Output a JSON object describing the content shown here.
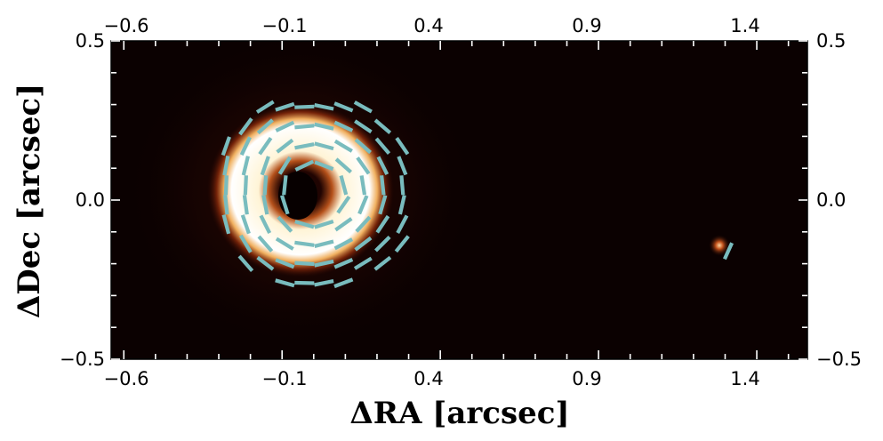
{
  "chart_data": {
    "type": "heatmap",
    "title": "",
    "xlabel": "ΔRA [arcsec]",
    "ylabel": "ΔDec [arcsec]",
    "xlim": [
      -0.64,
      1.56
    ],
    "ylim": [
      -0.5,
      0.5
    ],
    "x_ticks": [
      -0.6,
      -0.1,
      0.4,
      0.9,
      1.4
    ],
    "x_tick_labels": [
      "−0.6",
      "−0.1",
      "0.4",
      "0.9",
      "1.4"
    ],
    "y_ticks": [
      0.5,
      0.0,
      -0.5
    ],
    "y_tick_labels": [
      "0.5",
      "0.0",
      "−0.5"
    ],
    "colormap": [
      "#0a0000",
      "#3a0a04",
      "#7a2208",
      "#c0581a",
      "#e8a050",
      "#fff2c8",
      "#ffffff"
    ],
    "vector_color": "#79bcbe",
    "sources": [
      {
        "name": "disk",
        "x": 0.01,
        "y": 0.03,
        "inner_radius": 0.065,
        "outer_radius": 0.25,
        "peak_radius": 0.2
      },
      {
        "name": "companion",
        "x": 1.31,
        "y": -0.16
      }
    ],
    "polarization_vectors": "azimuthal pattern around disk center (0.01, 0.03); one vector at companion"
  }
}
